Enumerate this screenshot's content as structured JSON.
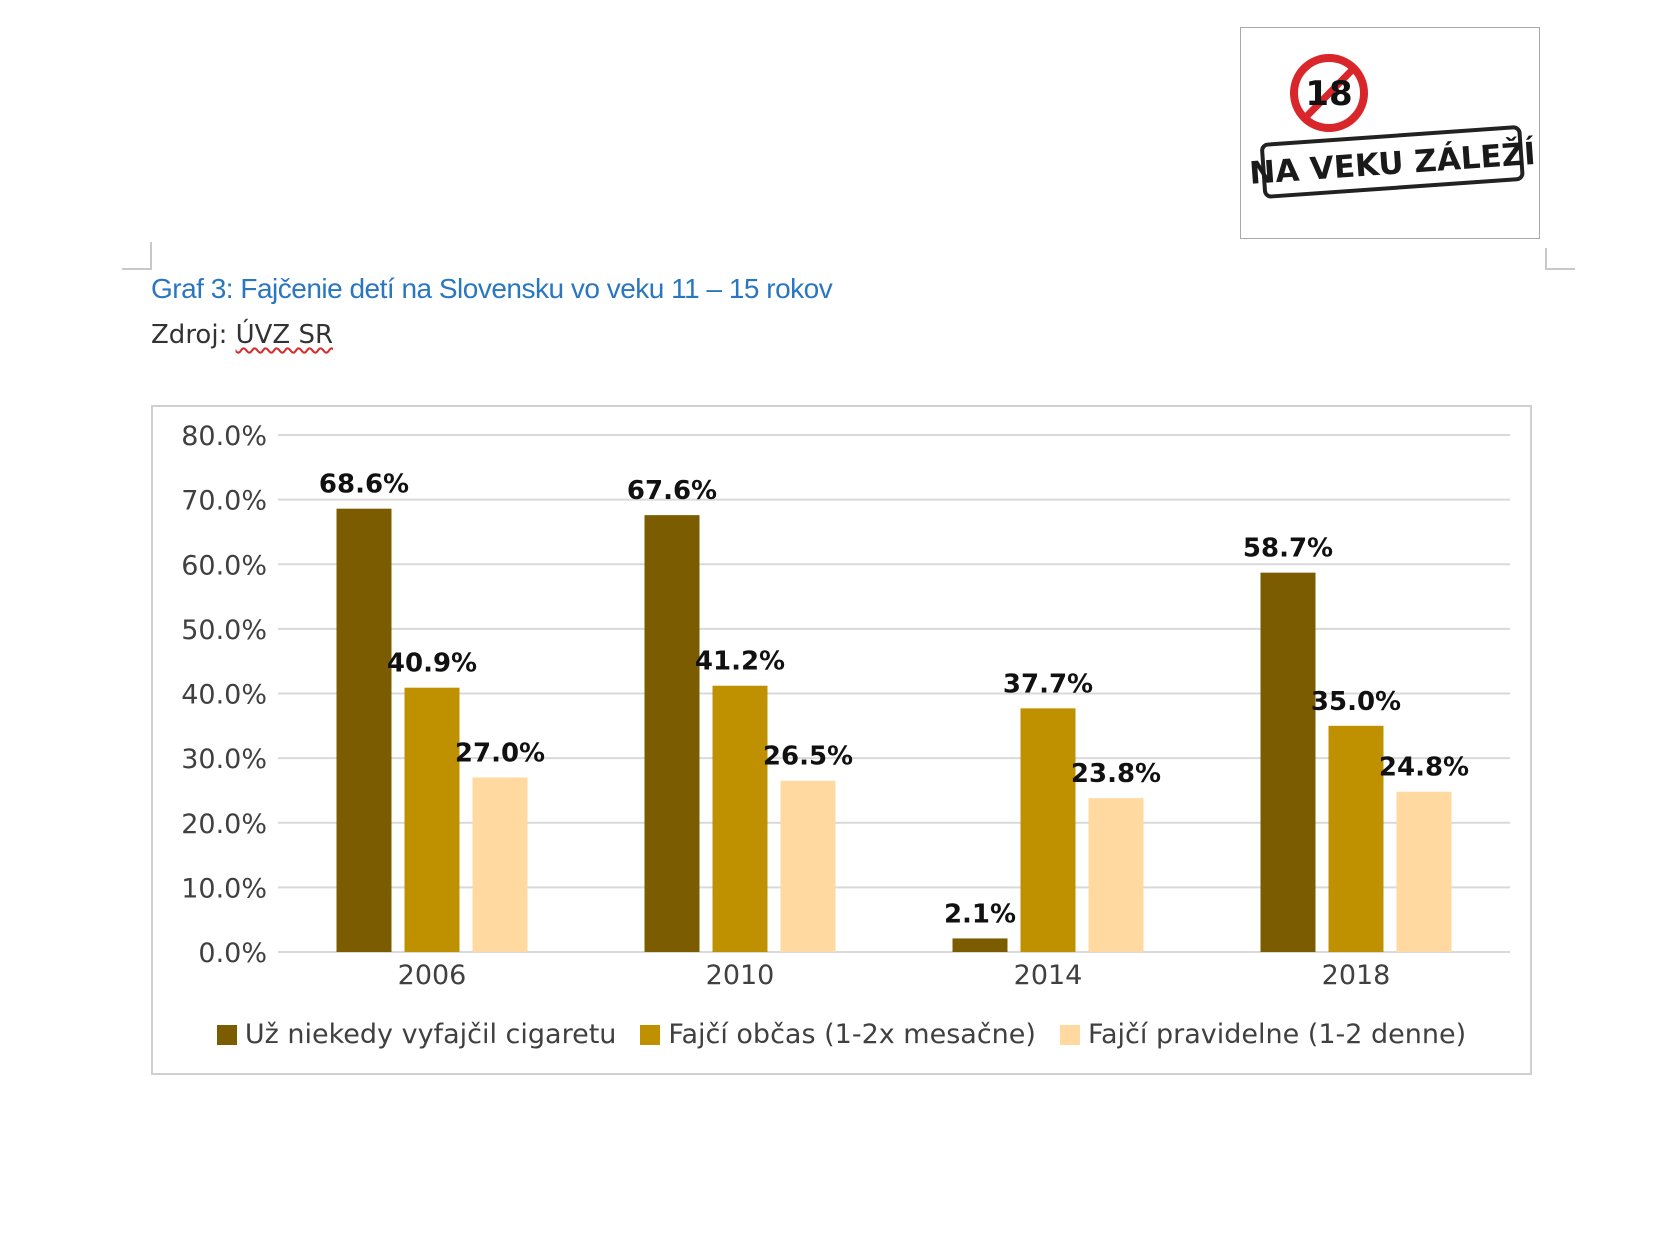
{
  "logo": {
    "number": "18",
    "slogan": "NA VEKU ZÁLEŽÍ"
  },
  "caption": {
    "title": "Graf 3: Fajčenie detí na Slovensku vo veku 11 – 15 rokov",
    "source_label": "Zdroj:",
    "source_value": "ÚVZ SR"
  },
  "colors": {
    "series1": "#7b5c00",
    "series2": "#bf9000",
    "series3": "#ffd9a0",
    "grid": "#d9d9d9",
    "logo_red": "#d9262a"
  },
  "chart_data": {
    "type": "bar",
    "title": "",
    "xlabel": "",
    "ylabel": "",
    "categories": [
      "2006",
      "2010",
      "2014",
      "2018"
    ],
    "ylim": [
      0,
      80
    ],
    "yticks": [
      "0.0%",
      "10.0%",
      "20.0%",
      "30.0%",
      "40.0%",
      "50.0%",
      "60.0%",
      "70.0%",
      "80.0%"
    ],
    "grid": true,
    "legend_position": "bottom",
    "series": [
      {
        "name": "Už niekedy vyfajčil cigaretu",
        "values": [
          68.6,
          67.6,
          2.1,
          58.7
        ],
        "labels": [
          "68.6%",
          "67.6%",
          "2.1%",
          "58.7%"
        ]
      },
      {
        "name": "Fajčí občas (1-2x mesačne)",
        "values": [
          40.9,
          41.2,
          37.7,
          35.0
        ],
        "labels": [
          "40.9%",
          "41.2%",
          "37.7%",
          "35.0%"
        ]
      },
      {
        "name": "Fajčí pravidelne (1-2 denne)",
        "values": [
          27.0,
          26.5,
          23.8,
          24.8
        ],
        "labels": [
          "27.0%",
          "26.5%",
          "23.8%",
          "24.8%"
        ]
      }
    ]
  }
}
